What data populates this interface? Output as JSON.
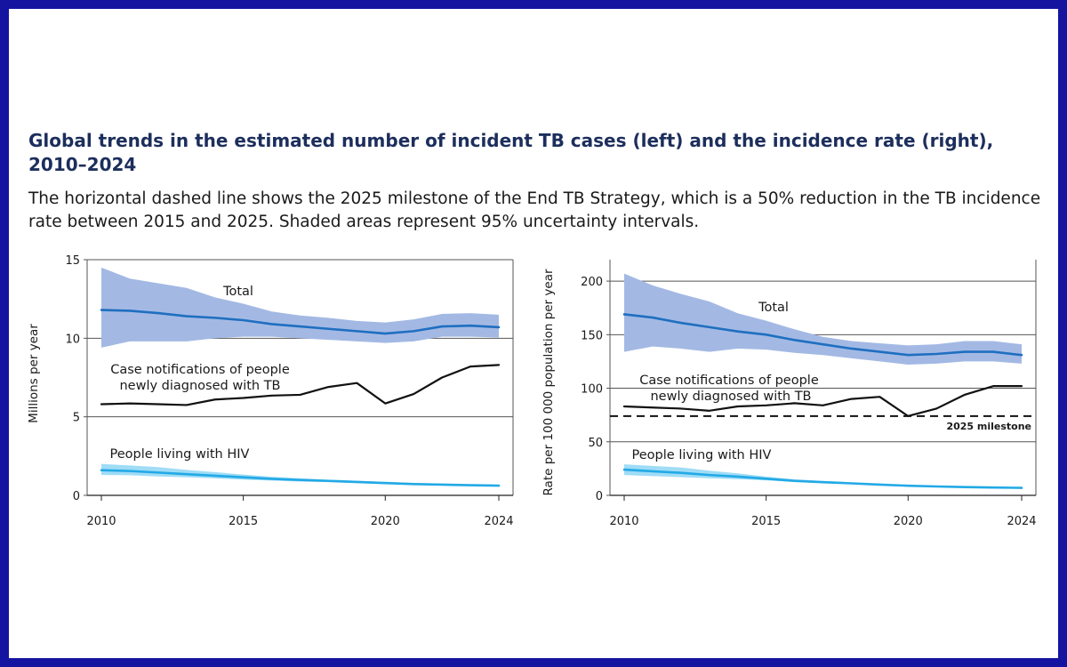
{
  "title": "Global trends in the estimated number of incident TB cases (left) and the incidence rate (right), 2010–2024",
  "subtitle": "The horizontal dashed line shows the 2025 milestone of the End TB Strategy, which is a 50% reduction in the TB incidence rate between 2015 and 2025. Shaded areas represent 95% uncertainty intervals.",
  "colors": {
    "total_line": "#1f6fc0",
    "total_band": "#a3b9e4",
    "hiv_line": "#22a9e6",
    "hiv_band": "#9fdcf6",
    "notif_line": "#111111",
    "grid": "#555555",
    "milestone": "#111111"
  },
  "chart_data": [
    {
      "type": "line",
      "ylabel": "Millions per year",
      "ylim": [
        0,
        15
      ],
      "yticks": [
        0,
        5,
        10,
        15
      ],
      "xlim": [
        2010,
        2024
      ],
      "xticks": [
        2010,
        2015,
        2020,
        2024
      ],
      "x": [
        2010,
        2011,
        2012,
        2013,
        2014,
        2015,
        2016,
        2017,
        2018,
        2019,
        2020,
        2021,
        2022,
        2023,
        2024
      ],
      "series": [
        {
          "name": "Total",
          "label": "Total",
          "values": [
            11.8,
            11.75,
            11.6,
            11.4,
            11.3,
            11.15,
            10.9,
            10.75,
            10.6,
            10.45,
            10.3,
            10.45,
            10.75,
            10.8,
            10.7
          ],
          "lower": [
            9.4,
            9.8,
            9.8,
            9.8,
            10.0,
            10.1,
            10.1,
            10.0,
            9.9,
            9.8,
            9.7,
            9.8,
            10.1,
            10.1,
            10.05
          ],
          "upper": [
            14.5,
            13.8,
            13.5,
            13.2,
            12.6,
            12.2,
            11.7,
            11.45,
            11.3,
            11.1,
            11.0,
            11.2,
            11.55,
            11.6,
            11.5
          ]
        },
        {
          "name": "Case notifications",
          "label": [
            "Case notifications of people",
            "newly diagnosed with TB"
          ],
          "values": [
            5.8,
            5.85,
            5.8,
            5.75,
            6.1,
            6.2,
            6.35,
            6.4,
            6.9,
            7.15,
            5.85,
            6.45,
            7.5,
            8.2,
            8.3
          ]
        },
        {
          "name": "People living with HIV",
          "label": "People living with HIV",
          "values": [
            1.6,
            1.55,
            1.45,
            1.35,
            1.25,
            1.15,
            1.05,
            0.98,
            0.92,
            0.85,
            0.78,
            0.72,
            0.68,
            0.65,
            0.62
          ],
          "lower": [
            1.3,
            1.28,
            1.2,
            1.15,
            1.08,
            1.0,
            0.94,
            0.88,
            0.84,
            0.78,
            0.72,
            0.68,
            0.64,
            0.61,
            0.58
          ],
          "upper": [
            2.0,
            1.9,
            1.8,
            1.62,
            1.48,
            1.32,
            1.18,
            1.08,
            1.0,
            0.93,
            0.86,
            0.79,
            0.74,
            0.7,
            0.67
          ]
        }
      ]
    },
    {
      "type": "line",
      "ylabel": "Rate per 100 000 population per year",
      "ylim": [
        0,
        220
      ],
      "yticks": [
        0,
        50,
        100,
        150,
        200
      ],
      "xlim": [
        2010,
        2024
      ],
      "xticks": [
        2010,
        2015,
        2020,
        2024
      ],
      "x": [
        2010,
        2011,
        2012,
        2013,
        2014,
        2015,
        2016,
        2017,
        2018,
        2019,
        2020,
        2021,
        2022,
        2023,
        2024
      ],
      "milestone": {
        "value": 74,
        "label": "2025 milestone"
      },
      "series": [
        {
          "name": "Total",
          "label": "Total",
          "values": [
            169,
            166,
            161,
            157,
            153,
            150,
            145,
            141,
            137,
            134,
            131,
            132,
            134,
            134,
            131
          ],
          "lower": [
            134,
            139,
            137,
            134,
            137,
            136,
            133,
            131,
            128,
            125,
            122,
            123,
            125,
            125,
            123
          ],
          "upper": [
            207,
            196,
            188,
            181,
            170,
            163,
            155,
            148,
            144,
            142,
            140,
            141,
            144,
            144,
            141
          ]
        },
        {
          "name": "Case notifications",
          "label": [
            "Case notifications of people",
            "newly diagnosed with TB"
          ],
          "values": [
            83,
            82,
            81,
            79,
            83,
            84,
            86,
            84,
            90,
            92,
            74,
            81,
            94,
            102,
            102
          ]
        },
        {
          "name": "People living with HIV",
          "label": "People living with HIV",
          "values": [
            24,
            22.5,
            21,
            19,
            17.5,
            15.5,
            13.5,
            12.3,
            11.2,
            10,
            9,
            8.3,
            7.7,
            7.3,
            7
          ],
          "lower": [
            19,
            18,
            17,
            16,
            15,
            14,
            12.5,
            11.5,
            10.5,
            9.5,
            8.5,
            7.9,
            7.3,
            6.9,
            6.6
          ],
          "upper": [
            29,
            27.5,
            26,
            23,
            20.5,
            17.5,
            15,
            13.5,
            12.2,
            10.8,
            9.6,
            8.8,
            8.2,
            7.8,
            7.5
          ]
        }
      ]
    }
  ]
}
